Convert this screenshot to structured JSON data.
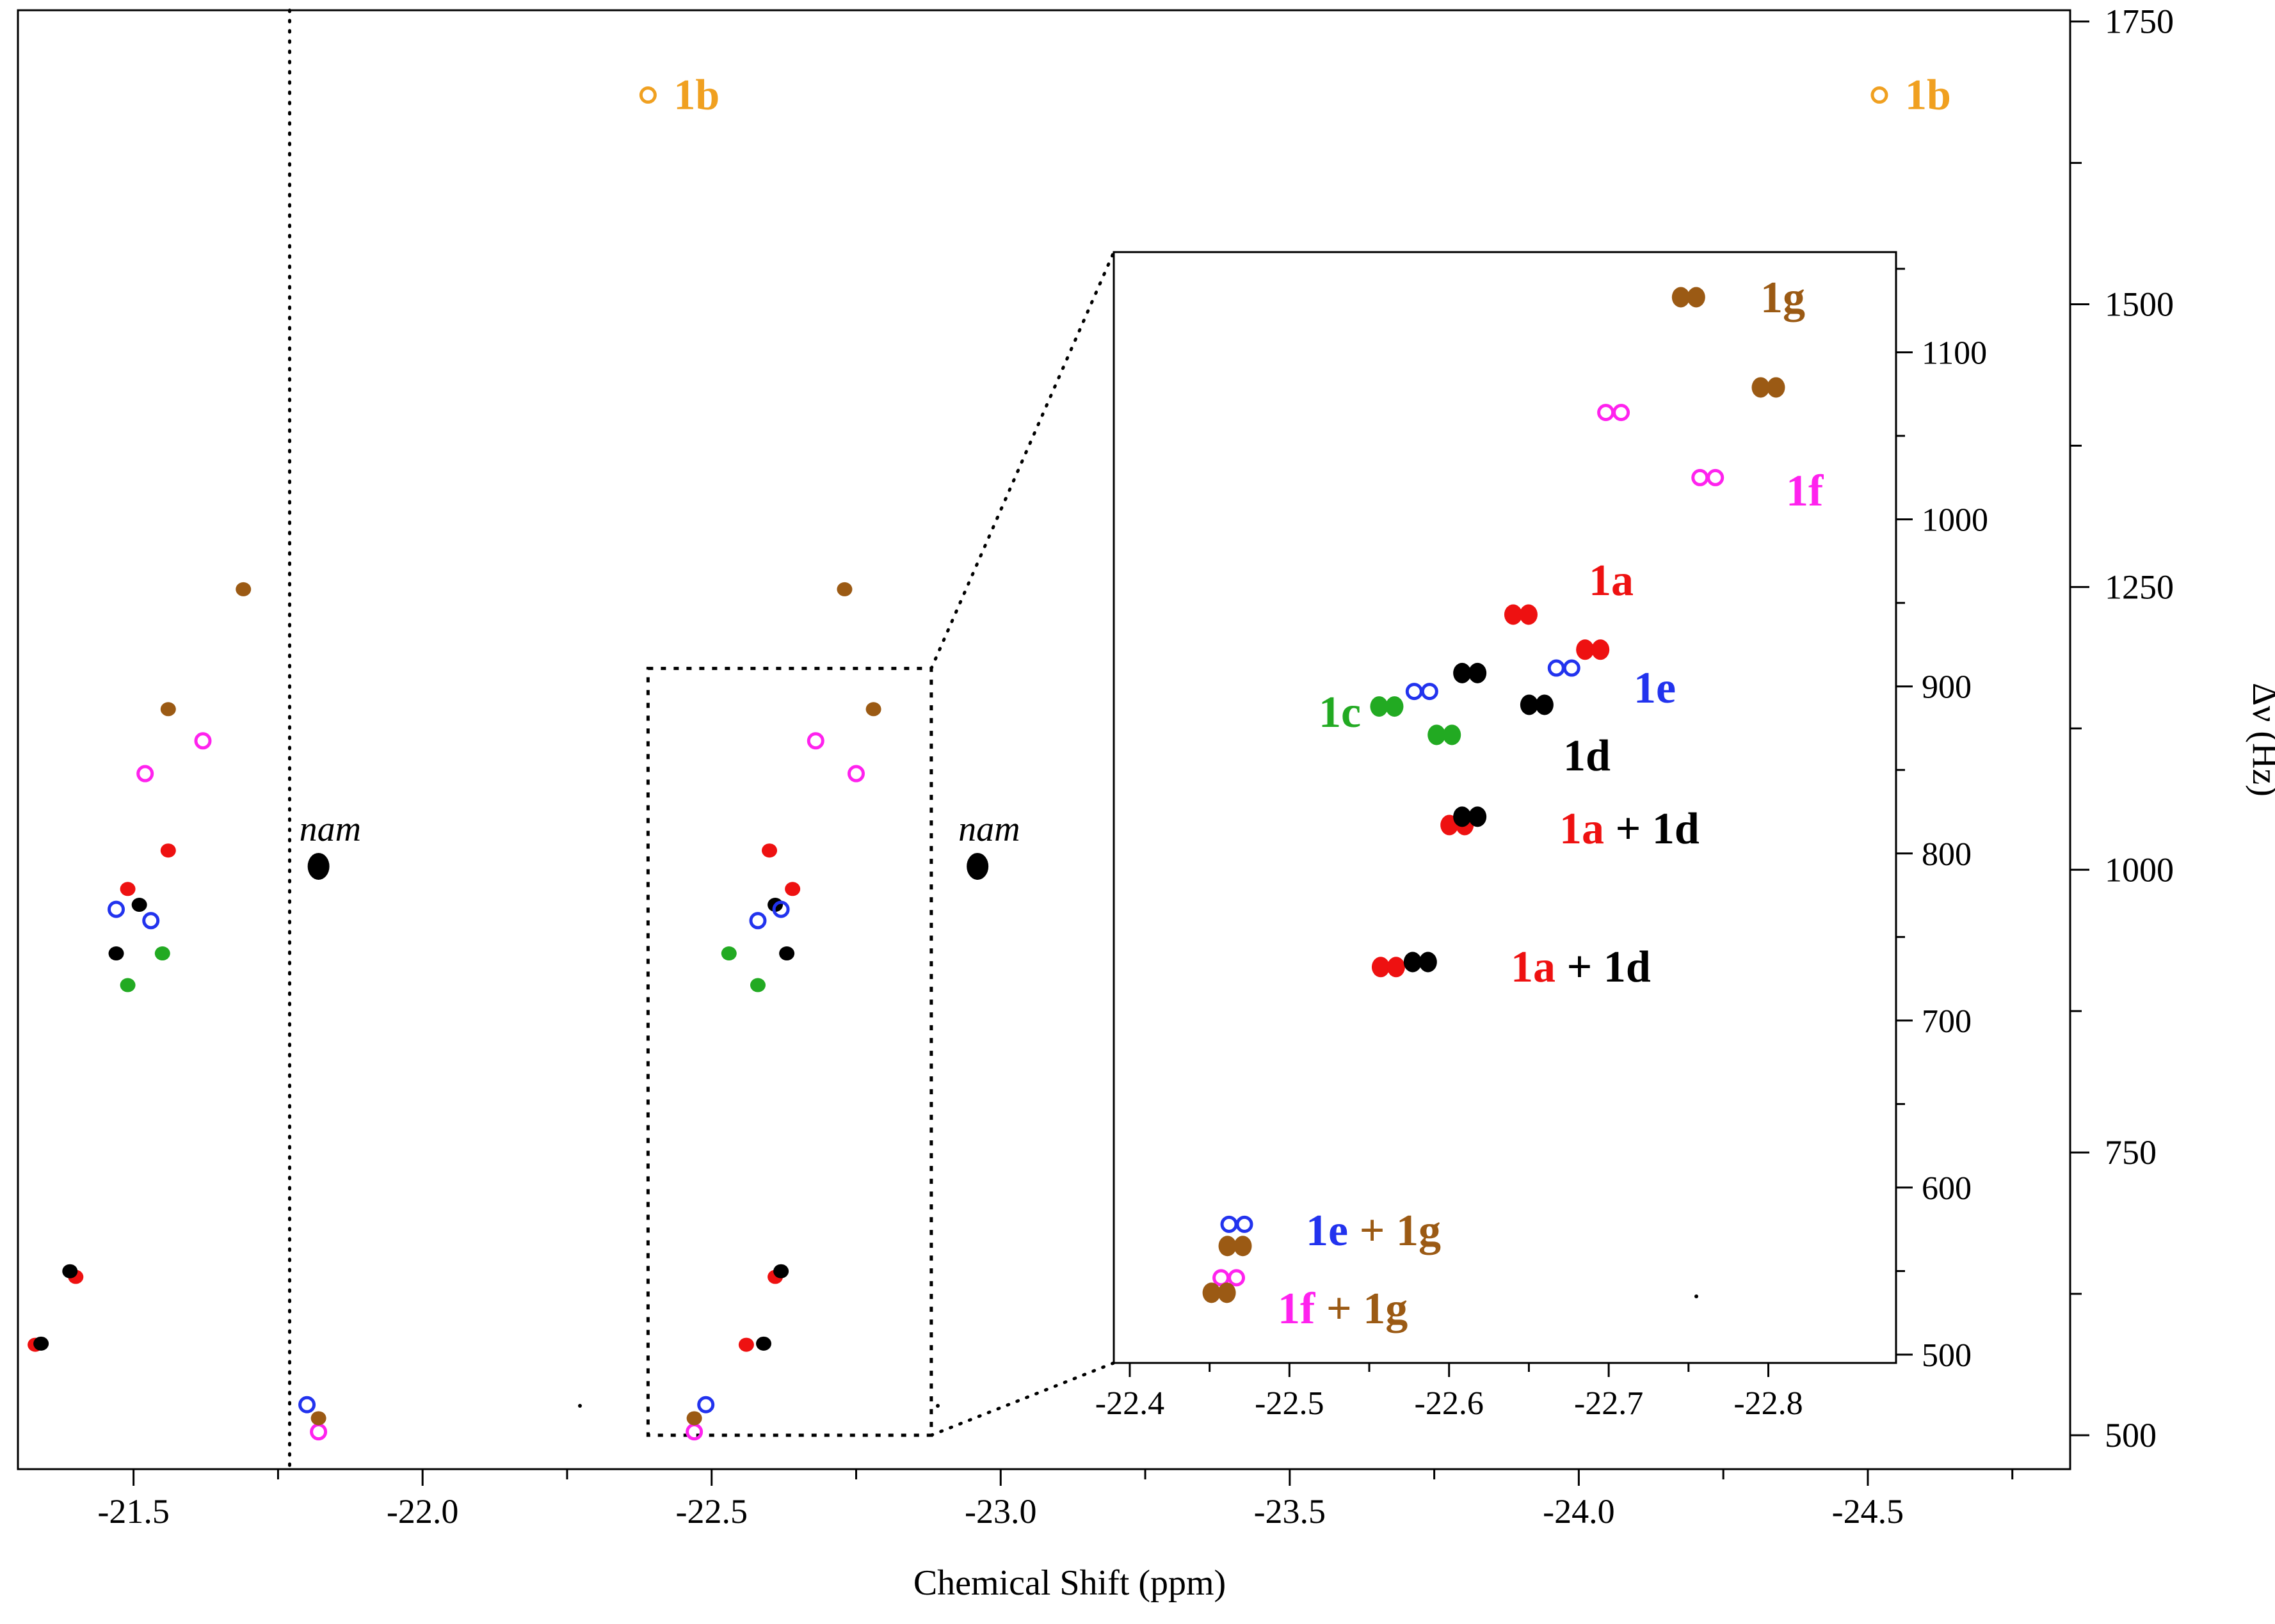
{
  "chart_data": [
    {
      "type": "scatter",
      "title": "",
      "xlabel": "Chemical Shift (ppm)",
      "ylabel": "Δν (Hz)",
      "xlim": [
        -21.3,
        -24.85
      ],
      "ylim": [
        470,
        1760
      ],
      "x_ticks": [
        "-21.5",
        "-22.0",
        "-22.5",
        "-23.0",
        "-23.5",
        "-24.0",
        "-24.5"
      ],
      "x_tick_values": [
        -21.5,
        -22.0,
        -22.5,
        -23.0,
        -23.5,
        -24.0,
        -24.5
      ],
      "y_ticks": [
        "500",
        "750",
        "1000",
        "1250",
        "1500",
        "1750"
      ],
      "y_tick_values": [
        500,
        750,
        1000,
        1250,
        1500,
        1750
      ],
      "reference_line_x": -21.77,
      "zoom_box": {
        "x": [
          -22.39,
          -22.88
        ],
        "y": [
          500,
          1178
        ]
      },
      "annotations": [
        {
          "text": "nam",
          "x": -21.82,
          "y": 1003
        },
        {
          "text": "nam",
          "x": -22.96,
          "y": 1003
        }
      ],
      "series": [
        {
          "name": "1a",
          "color": "#ee1111",
          "style": "filled",
          "points": [
            [
              -21.56,
              1017
            ],
            [
              -21.49,
              983
            ],
            [
              -21.4,
              640
            ],
            [
              -21.33,
              580
            ],
            [
              -22.6,
              1017
            ],
            [
              -22.64,
              983
            ],
            [
              -22.61,
              640
            ],
            [
              -22.56,
              580
            ]
          ]
        },
        {
          "name": "1b",
          "color": "#f0a020",
          "style": "open",
          "points": [
            [
              -22.39,
              1685
            ],
            [
              -24.52,
              1685
            ]
          ]
        },
        {
          "name": "1c",
          "color": "#22aa22",
          "style": "filled",
          "points": [
            [
              -21.55,
              926
            ],
            [
              -21.49,
              898
            ],
            [
              -22.53,
              926
            ],
            [
              -22.58,
              898
            ]
          ]
        },
        {
          "name": "1d",
          "color": "#000000",
          "style": "filled",
          "points": [
            [
              -21.51,
              969
            ],
            [
              -21.47,
              926
            ],
            [
              -21.39,
              645
            ],
            [
              -21.34,
              581
            ],
            [
              -22.61,
              969
            ],
            [
              -22.63,
              926
            ],
            [
              -22.62,
              645
            ],
            [
              -22.59,
              581
            ]
          ]
        },
        {
          "name": "1e",
          "color": "#2233ee",
          "style": "open",
          "points": [
            [
              -21.53,
              955
            ],
            [
              -21.47,
              965
            ],
            [
              -21.8,
              527
            ],
            [
              -22.49,
              527
            ],
            [
              -22.58,
              955
            ],
            [
              -22.62,
              965
            ]
          ]
        },
        {
          "name": "1f",
          "color": "#ff22ee",
          "style": "open",
          "points": [
            [
              -21.62,
              1114
            ],
            [
              -21.52,
              1085
            ],
            [
              -21.82,
              503
            ],
            [
              -22.47,
              503
            ],
            [
              -22.68,
              1114
            ],
            [
              -22.75,
              1085
            ]
          ]
        },
        {
          "name": "1g",
          "color": "#9b5a14",
          "style": "filled",
          "points": [
            [
              -21.69,
              1248
            ],
            [
              -21.56,
              1142
            ],
            [
              -21.82,
              515
            ],
            [
              -22.47,
              515
            ],
            [
              -22.73,
              1248
            ],
            [
              -22.78,
              1142
            ]
          ]
        }
      ]
    },
    {
      "type": "scatter",
      "title": "",
      "xlabel": "",
      "ylabel": "",
      "xlim": [
        -22.39,
        -22.88
      ],
      "ylim": [
        495,
        1160
      ],
      "x_ticks": [
        "-22.4",
        "-22.5",
        "-22.6",
        "-22.7",
        "-22.8"
      ],
      "x_tick_values": [
        -22.4,
        -22.5,
        -22.6,
        -22.7,
        -22.8
      ],
      "y_ticks": [
        "500",
        "600",
        "700",
        "800",
        "900",
        "1000",
        "1100"
      ],
      "y_tick_values": [
        500,
        600,
        700,
        800,
        900,
        1000,
        1100
      ],
      "series": [
        {
          "name": "1a",
          "color": "#ee1111",
          "style": "filled",
          "points": [
            [
              -22.645,
              943
            ],
            [
              -22.69,
              922
            ],
            [
              -22.562,
              732
            ],
            [
              -22.605,
              817
            ]
          ]
        },
        {
          "name": "1c",
          "color": "#22aa22",
          "style": "filled",
          "points": [
            [
              -22.561,
              888
            ],
            [
              -22.597,
              871
            ]
          ]
        },
        {
          "name": "1d",
          "color": "#000000",
          "style": "filled",
          "points": [
            [
              -22.613,
              908
            ],
            [
              -22.655,
              889
            ],
            [
              -22.613,
              822
            ],
            [
              -22.582,
              735
            ]
          ]
        },
        {
          "name": "1e",
          "color": "#2233ee",
          "style": "open",
          "points": [
            [
              -22.583,
              897
            ],
            [
              -22.672,
              911
            ],
            [
              -22.467,
              578
            ]
          ]
        },
        {
          "name": "1f",
          "color": "#ff22ee",
          "style": "open",
          "points": [
            [
              -22.703,
              1064
            ],
            [
              -22.762,
              1025
            ],
            [
              -22.462,
              546
            ]
          ]
        },
        {
          "name": "1g",
          "color": "#9b5a14",
          "style": "filled",
          "points": [
            [
              -22.75,
              1133
            ],
            [
              -22.8,
              1079
            ],
            [
              -22.466,
              565
            ],
            [
              -22.456,
              537
            ]
          ]
        }
      ],
      "labels": [
        {
          "parts": [
            {
              "t": "1g",
              "c": "#9b5a14"
            }
          ]
        },
        {
          "parts": [
            {
              "t": "1f",
              "c": "#ff22ee"
            }
          ]
        },
        {
          "parts": [
            {
              "t": "1a",
              "c": "#ee1111"
            }
          ]
        },
        {
          "parts": [
            {
              "t": "1e",
              "c": "#2233ee"
            }
          ]
        },
        {
          "parts": [
            {
              "t": "1c",
              "c": "#22aa22"
            }
          ]
        },
        {
          "parts": [
            {
              "t": "1d",
              "c": "#000000"
            }
          ]
        },
        {
          "parts": [
            {
              "t": "1a",
              "c": "#ee1111"
            },
            {
              "t": " + ",
              "c": "#000000"
            },
            {
              "t": "1d",
              "c": "#000000"
            }
          ]
        },
        {
          "parts": [
            {
              "t": "1a",
              "c": "#ee1111"
            },
            {
              "t": " + ",
              "c": "#000000"
            },
            {
              "t": "1d",
              "c": "#000000"
            }
          ]
        },
        {
          "parts": [
            {
              "t": "1e",
              "c": "#2233ee"
            },
            {
              "t": " + ",
              "c": "#9b5a14"
            },
            {
              "t": "1g",
              "c": "#9b5a14"
            }
          ]
        },
        {
          "parts": [
            {
              "t": "1f",
              "c": "#ff22ee"
            },
            {
              "t": " + ",
              "c": "#9b5a14"
            },
            {
              "t": "1g",
              "c": "#9b5a14"
            }
          ]
        }
      ],
      "series_labels_main": [
        {
          "parts": [
            {
              "t": "1b",
              "c": "#f0a020"
            }
          ]
        },
        {
          "parts": [
            {
              "t": "1b",
              "c": "#f0a020"
            }
          ]
        }
      ]
    }
  ]
}
